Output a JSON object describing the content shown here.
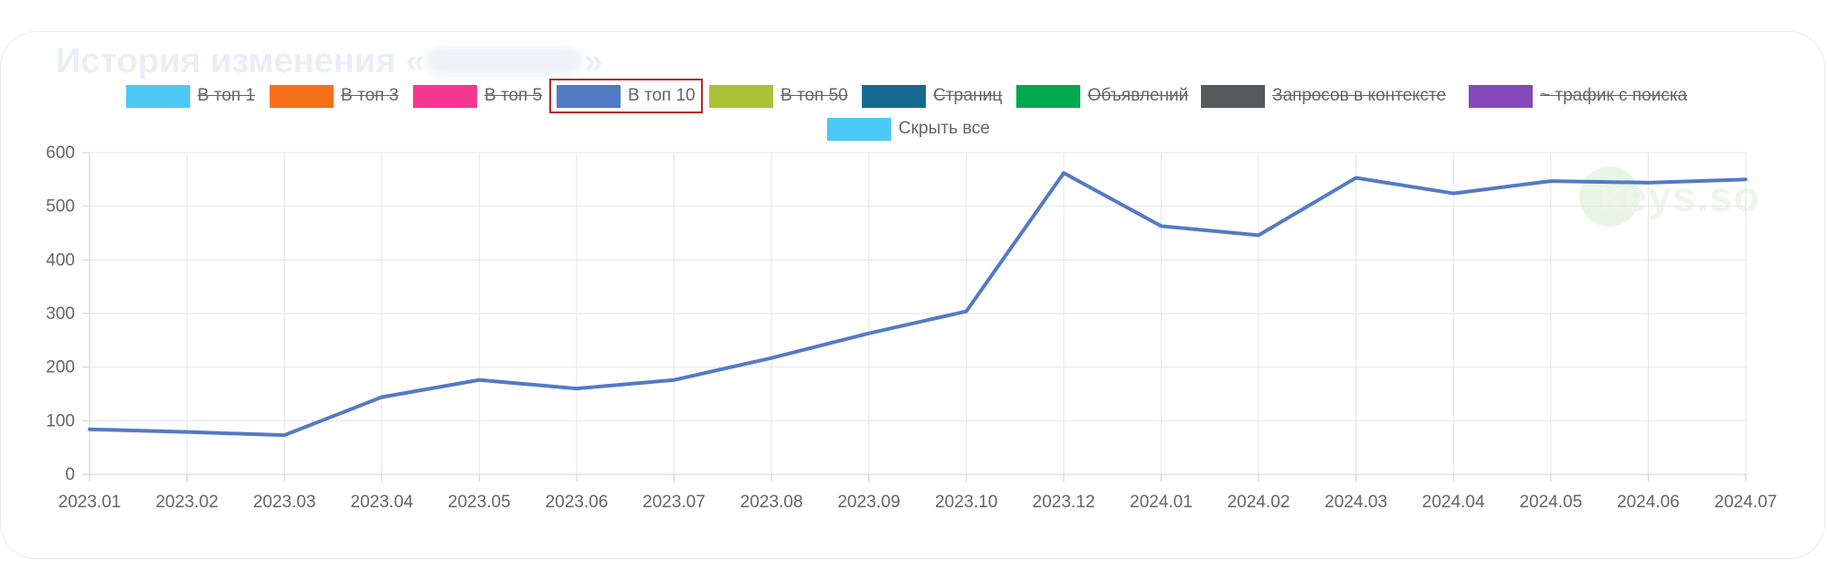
{
  "card": {
    "title_prefix": "История изменения «",
    "title_suffix": "»"
  },
  "legend": [
    {
      "label": "В топ 1",
      "color": "#4dc9f6",
      "hidden": true
    },
    {
      "label": "В топ 3",
      "color": "#f67019",
      "hidden": true
    },
    {
      "label": "В топ 5",
      "color": "#f53794",
      "hidden": true
    },
    {
      "label": "В топ 10",
      "color": "#537bc4",
      "hidden": false,
      "selected": true
    },
    {
      "label": "В топ 50",
      "color": "#acc236",
      "hidden": true
    },
    {
      "label": "Страниц",
      "color": "#166a8f",
      "hidden": true
    },
    {
      "label": "Объявлений",
      "color": "#00a950",
      "hidden": true
    },
    {
      "label": "Запросов в контексте",
      "color": "#58595b",
      "hidden": true
    },
    {
      "label": "~ трафик с поиска",
      "color": "#8549ba",
      "hidden": true
    },
    {
      "label": "Скрыть все",
      "color": "#4dc9f6",
      "hidden": false
    }
  ],
  "watermark": {
    "text": "keys.so"
  },
  "chart_data": {
    "type": "line",
    "categories": [
      "2023.01",
      "2023.02",
      "2023.03",
      "2023.04",
      "2023.05",
      "2023.06",
      "2023.07",
      "2023.08",
      "2023.09",
      "2023.10",
      "2023.12",
      "2024.01",
      "2024.02",
      "2024.03",
      "2024.04",
      "2024.05",
      "2024.06",
      "2024.07"
    ],
    "series": [
      {
        "name": "В топ 10",
        "color": "#537bc4",
        "values": [
          84,
          79,
          73,
          144,
          176,
          160,
          176,
          217,
          263,
          304,
          562,
          463,
          446,
          553,
          524,
          547,
          544,
          550
        ]
      }
    ],
    "ylim": [
      0,
      600
    ],
    "yticks": [
      0,
      100,
      200,
      300,
      400,
      500,
      600
    ],
    "grid": true,
    "legend_position": "top"
  }
}
